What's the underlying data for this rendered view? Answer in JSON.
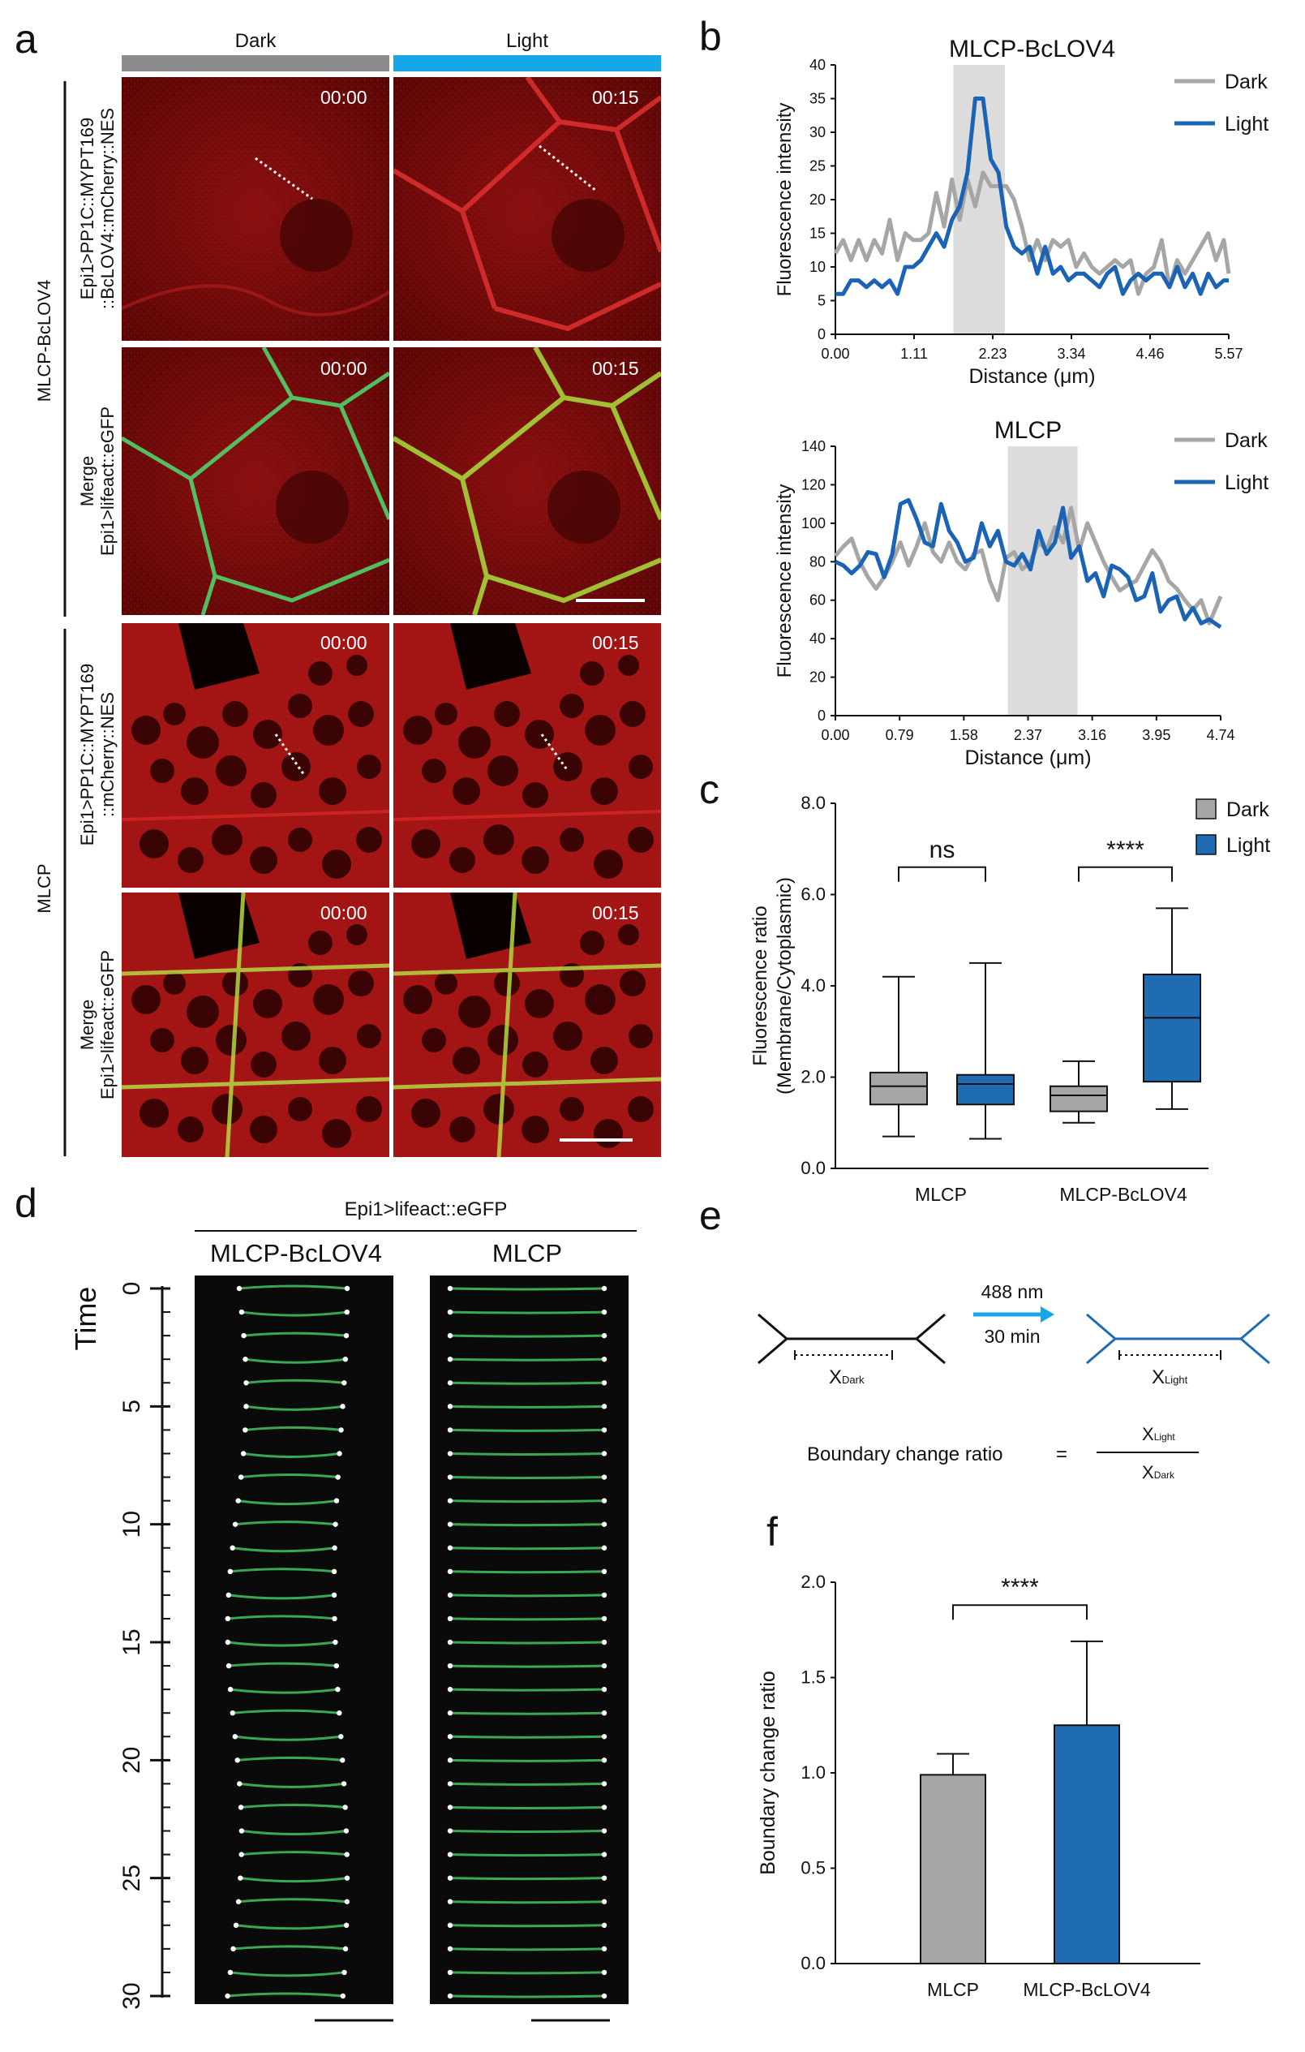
{
  "panels": {
    "a": "a",
    "b": "b",
    "c": "c",
    "d": "d",
    "e": "e",
    "f": "f"
  },
  "panel_a": {
    "col_dark": "Dark",
    "col_light": "Light",
    "group_top": "MLCP-BcLOV4",
    "group_bottom": "MLCP",
    "row1_label_1": "Epi1>PP1C::MYPT169",
    "row1_label_2": "::BcLOV4::mCherry::NES",
    "row2_label_1": "Merge",
    "row2_label_2": "Epi1>lifeact::eGFP",
    "row3_label_1": "Epi1>PP1C::MYPT169",
    "row3_label_2": "::mCherry::NES",
    "row4_label_1": "Merge",
    "row4_label_2": "Epi1>lifeact::eGFP",
    "time_dark": "00:00",
    "time_light": "00:15",
    "colors": {
      "dark_bar": "#8c8c8c",
      "light_bar": "#15a7e8",
      "red": "#d41f1f",
      "green": "#4fd36a"
    }
  },
  "panel_d": {
    "title": "Epi1>lifeact::eGFP",
    "col1": "MLCP-BcLOV4",
    "col2": "MLCP",
    "ylabel": "Time",
    "ticks": [
      "0",
      "5",
      "10",
      "15",
      "20",
      "25",
      "30"
    ]
  },
  "panel_e": {
    "wavelength": "488 nm",
    "duration": "30 min",
    "x_dark": "X",
    "x_dark_sub": "Dark",
    "x_light": "X",
    "x_light_sub": "Light",
    "formula_label": "Boundary change ratio",
    "equals": "=",
    "num": "X",
    "num_sub": "Light",
    "den": "X",
    "den_sub": "Dark"
  },
  "chart_data": [
    {
      "id": "b_top",
      "type": "line",
      "title": "MLCP-BcLOV4",
      "xlabel": "Distance (μm)",
      "ylabel": "Fluorescence intensity",
      "xlim": [
        0,
        5.57
      ],
      "ylim": [
        0,
        40
      ],
      "xticks": [
        "0.00",
        "1.11",
        "2.23",
        "3.34",
        "4.46",
        "5.57"
      ],
      "yticks": [
        "0",
        "5",
        "10",
        "15",
        "20",
        "25",
        "30",
        "35",
        "40"
      ],
      "shaded_x": [
        1.67,
        2.4
      ],
      "series": [
        {
          "name": "Dark",
          "color": "#a6a6a6",
          "x": [
            0,
            0.11,
            0.22,
            0.33,
            0.44,
            0.55,
            0.66,
            0.77,
            0.88,
            0.99,
            1.1,
            1.21,
            1.32,
            1.43,
            1.54,
            1.65,
            1.76,
            1.87,
            1.98,
            2.09,
            2.2,
            2.31,
            2.42,
            2.53,
            2.64,
            2.75,
            2.86,
            2.97,
            3.08,
            3.19,
            3.3,
            3.41,
            3.52,
            3.63,
            3.74,
            3.85,
            3.96,
            4.07,
            4.18,
            4.29,
            4.4,
            4.51,
            4.62,
            4.73,
            4.84,
            4.95,
            5.06,
            5.17,
            5.28,
            5.39,
            5.5,
            5.57
          ],
          "y": [
            12,
            14,
            11,
            14,
            11,
            14,
            12,
            17,
            11,
            15,
            14,
            14,
            15,
            21,
            16,
            23,
            17,
            23,
            19,
            24,
            22,
            22,
            22,
            20,
            16,
            11,
            14,
            11,
            14,
            13,
            14,
            10,
            12,
            10,
            9,
            10,
            11,
            10,
            11,
            6,
            9,
            10,
            14,
            7,
            11,
            9,
            11,
            13,
            15,
            11,
            14,
            9
          ]
        },
        {
          "name": "Light",
          "color": "#1a63b5",
          "x": [
            0,
            0.11,
            0.22,
            0.33,
            0.44,
            0.55,
            0.66,
            0.77,
            0.88,
            0.99,
            1.1,
            1.21,
            1.32,
            1.43,
            1.54,
            1.65,
            1.76,
            1.87,
            1.98,
            2.09,
            2.2,
            2.31,
            2.42,
            2.53,
            2.64,
            2.75,
            2.86,
            2.97,
            3.08,
            3.19,
            3.3,
            3.41,
            3.52,
            3.63,
            3.74,
            3.85,
            3.96,
            4.07,
            4.18,
            4.29,
            4.4,
            4.51,
            4.62,
            4.73,
            4.84,
            4.95,
            5.06,
            5.17,
            5.28,
            5.39,
            5.5,
            5.57
          ],
          "y": [
            6,
            6,
            8,
            8,
            7,
            8,
            7,
            8,
            6,
            10,
            10,
            11,
            13,
            15,
            13,
            17,
            19,
            24,
            35,
            35,
            26,
            24,
            16,
            13,
            12,
            13,
            9,
            13,
            9,
            10,
            8,
            9,
            9,
            8,
            7,
            9,
            10,
            6,
            8,
            9,
            8,
            9,
            9,
            7,
            10,
            7,
            9,
            6,
            9,
            7,
            8,
            8
          ]
        }
      ],
      "legend": "top-right"
    },
    {
      "id": "b_bottom",
      "type": "line",
      "title": "MLCP",
      "xlabel": "Distance (μm)",
      "ylabel": "Fluorescence intensity",
      "xlim": [
        0,
        4.74
      ],
      "ylim": [
        0,
        140
      ],
      "xticks": [
        "0.00",
        "0.79",
        "1.58",
        "2.37",
        "3.16",
        "3.95",
        "4.74"
      ],
      "yticks": [
        "0",
        "20",
        "40",
        "60",
        "80",
        "100",
        "120",
        "140"
      ],
      "shaded_x": [
        2.12,
        2.98
      ],
      "series": [
        {
          "name": "Dark",
          "color": "#a6a6a6",
          "x": [
            0,
            0.1,
            0.2,
            0.3,
            0.4,
            0.5,
            0.6,
            0.7,
            0.8,
            0.9,
            1.0,
            1.1,
            1.2,
            1.3,
            1.4,
            1.5,
            1.6,
            1.7,
            1.8,
            1.9,
            2.0,
            2.1,
            2.2,
            2.3,
            2.4,
            2.5,
            2.6,
            2.7,
            2.8,
            2.9,
            3.0,
            3.1,
            3.2,
            3.3,
            3.4,
            3.5,
            3.6,
            3.7,
            3.8,
            3.9,
            4.0,
            4.1,
            4.2,
            4.3,
            4.4,
            4.5,
            4.6,
            4.74
          ],
          "y": [
            83,
            88,
            92,
            80,
            72,
            66,
            72,
            80,
            90,
            78,
            88,
            100,
            85,
            80,
            90,
            80,
            76,
            84,
            86,
            70,
            60,
            82,
            85,
            76,
            80,
            90,
            86,
            98,
            90,
            108,
            86,
            100,
            90,
            80,
            72,
            65,
            68,
            70,
            78,
            86,
            80,
            70,
            66,
            60,
            55,
            60,
            48,
            62
          ]
        },
        {
          "name": "Light",
          "color": "#1a63b5",
          "x": [
            0,
            0.1,
            0.2,
            0.3,
            0.4,
            0.5,
            0.6,
            0.7,
            0.8,
            0.9,
            1.0,
            1.1,
            1.2,
            1.3,
            1.4,
            1.5,
            1.6,
            1.7,
            1.8,
            1.9,
            2.0,
            2.1,
            2.2,
            2.3,
            2.4,
            2.5,
            2.6,
            2.7,
            2.8,
            2.9,
            3.0,
            3.1,
            3.2,
            3.3,
            3.4,
            3.5,
            3.6,
            3.7,
            3.8,
            3.9,
            4.0,
            4.1,
            4.2,
            4.3,
            4.4,
            4.5,
            4.6,
            4.74
          ],
          "y": [
            80,
            78,
            74,
            78,
            85,
            84,
            72,
            84,
            110,
            112,
            102,
            90,
            88,
            110,
            96,
            90,
            80,
            82,
            100,
            88,
            96,
            80,
            78,
            84,
            76,
            96,
            84,
            90,
            108,
            82,
            88,
            70,
            74,
            62,
            78,
            76,
            72,
            60,
            62,
            74,
            54,
            60,
            62,
            50,
            56,
            48,
            50,
            46
          ]
        }
      ],
      "legend": "top-right"
    },
    {
      "id": "c",
      "type": "box",
      "ylabel": "Fluorescence ratio",
      "ylabel2": "(Membrane/Cytoplasmic)",
      "ylim": [
        0,
        8
      ],
      "yticks": [
        "0.0",
        "2.0",
        "4.0",
        "6.0",
        "8.0"
      ],
      "categories": [
        "MLCP",
        "MLCP-BcLOV4"
      ],
      "legend_items": [
        "Dark",
        "Light"
      ],
      "colors": {
        "Dark": "#a6a6a6",
        "Light": "#1f6cb3"
      },
      "boxes": [
        {
          "group": "MLCP",
          "series": "Dark",
          "min": 0.7,
          "q1": 1.4,
          "median": 1.8,
          "q3": 2.1,
          "max": 4.2
        },
        {
          "group": "MLCP",
          "series": "Light",
          "min": 0.65,
          "q1": 1.4,
          "median": 1.85,
          "q3": 2.05,
          "max": 4.5
        },
        {
          "group": "MLCP-BcLOV4",
          "series": "Dark",
          "min": 1.0,
          "q1": 1.25,
          "median": 1.6,
          "q3": 1.8,
          "max": 2.35
        },
        {
          "group": "MLCP-BcLOV4",
          "series": "Light",
          "min": 1.3,
          "q1": 1.9,
          "median": 3.3,
          "q3": 4.25,
          "max": 5.7
        }
      ],
      "sig": [
        "ns",
        "****"
      ],
      "legend": "top-right"
    },
    {
      "id": "f",
      "type": "bar",
      "ylabel": "Boundary change ratio",
      "ylim": [
        0,
        2.0
      ],
      "yticks": [
        "0.0",
        "0.5",
        "1.0",
        "1.5",
        "2.0"
      ],
      "categories": [
        "MLCP",
        "MLCP-BcLOV4"
      ],
      "values": [
        0.99,
        1.25
      ],
      "errors": [
        0.11,
        0.44
      ],
      "colors": [
        "#a6a6a6",
        "#1f6cb3"
      ],
      "sig": "****"
    }
  ]
}
